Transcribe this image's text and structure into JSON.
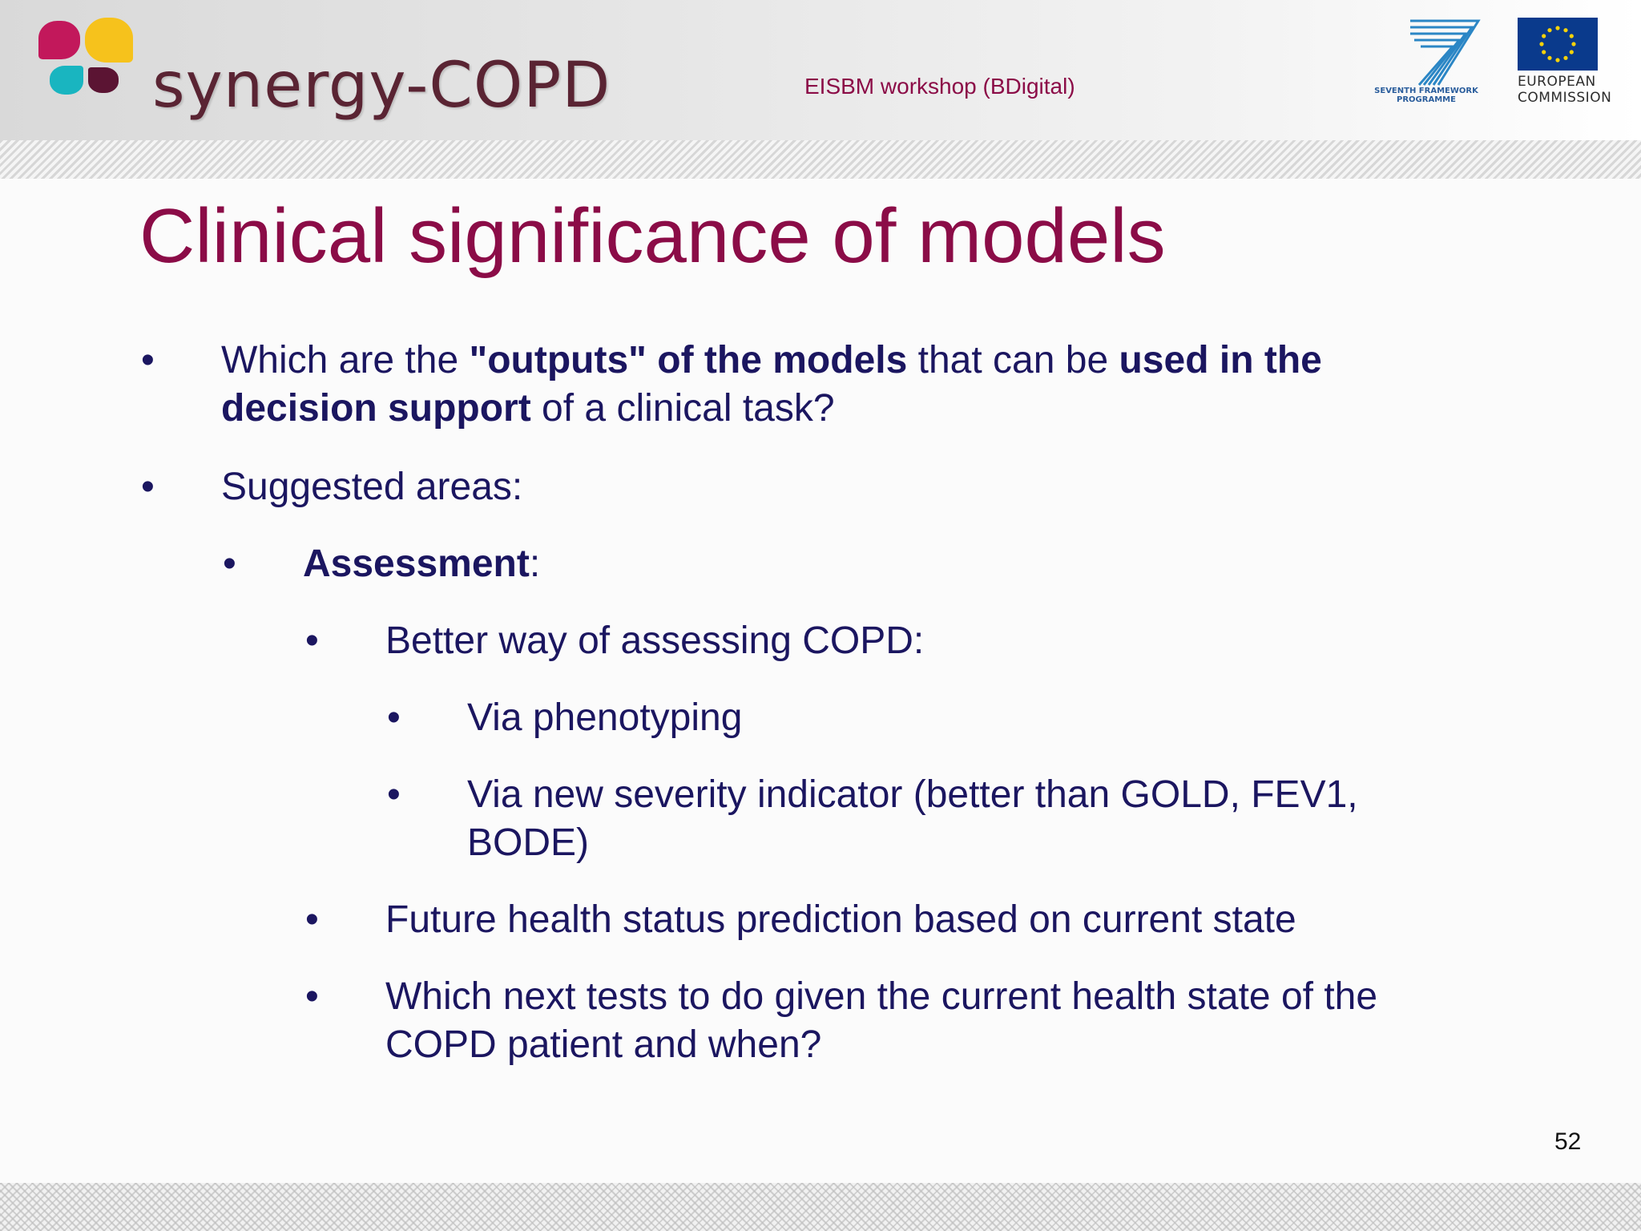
{
  "header": {
    "logo_text": "synergy-COPD",
    "workshop": "EISBM workshop (BDigital)",
    "fp7_label_line1": "SEVENTH FRAMEWORK",
    "fp7_label_line2": "PROGRAMME",
    "ec_label_line1": "EUROPEAN",
    "ec_label_line2": "COMMISSION"
  },
  "slide": {
    "title": "Clinical significance of models",
    "bullet_glyph": "•",
    "b1": {
      "t1": "Which are the ",
      "t2": "\"outputs\" of the models",
      "t3": " that can be ",
      "t4": "used in the",
      "t5": "decision support",
      "t6": " of a clinical task?"
    },
    "b2": "Suggested areas:",
    "b3": {
      "bold": "Assessment",
      "rest": ":"
    },
    "b4": "Better way of assessing COPD:",
    "b5": "Via phenotyping",
    "b6": {
      "line1": "Via new severity indicator (better than GOLD, FEV1,",
      "line2": "BODE)"
    },
    "b7": "Future health status prediction based on current state",
    "b8": {
      "line1": "Which next tests to do given the current health state of the",
      "line2": "COPD patient and when?"
    },
    "page_number": "52"
  },
  "colors": {
    "title": "#8b0c47",
    "body_text": "#1b1660",
    "logo_magenta": "#c2185b",
    "logo_yellow": "#f6c21c",
    "logo_teal": "#19b5c0",
    "logo_plum": "#5b1433"
  }
}
